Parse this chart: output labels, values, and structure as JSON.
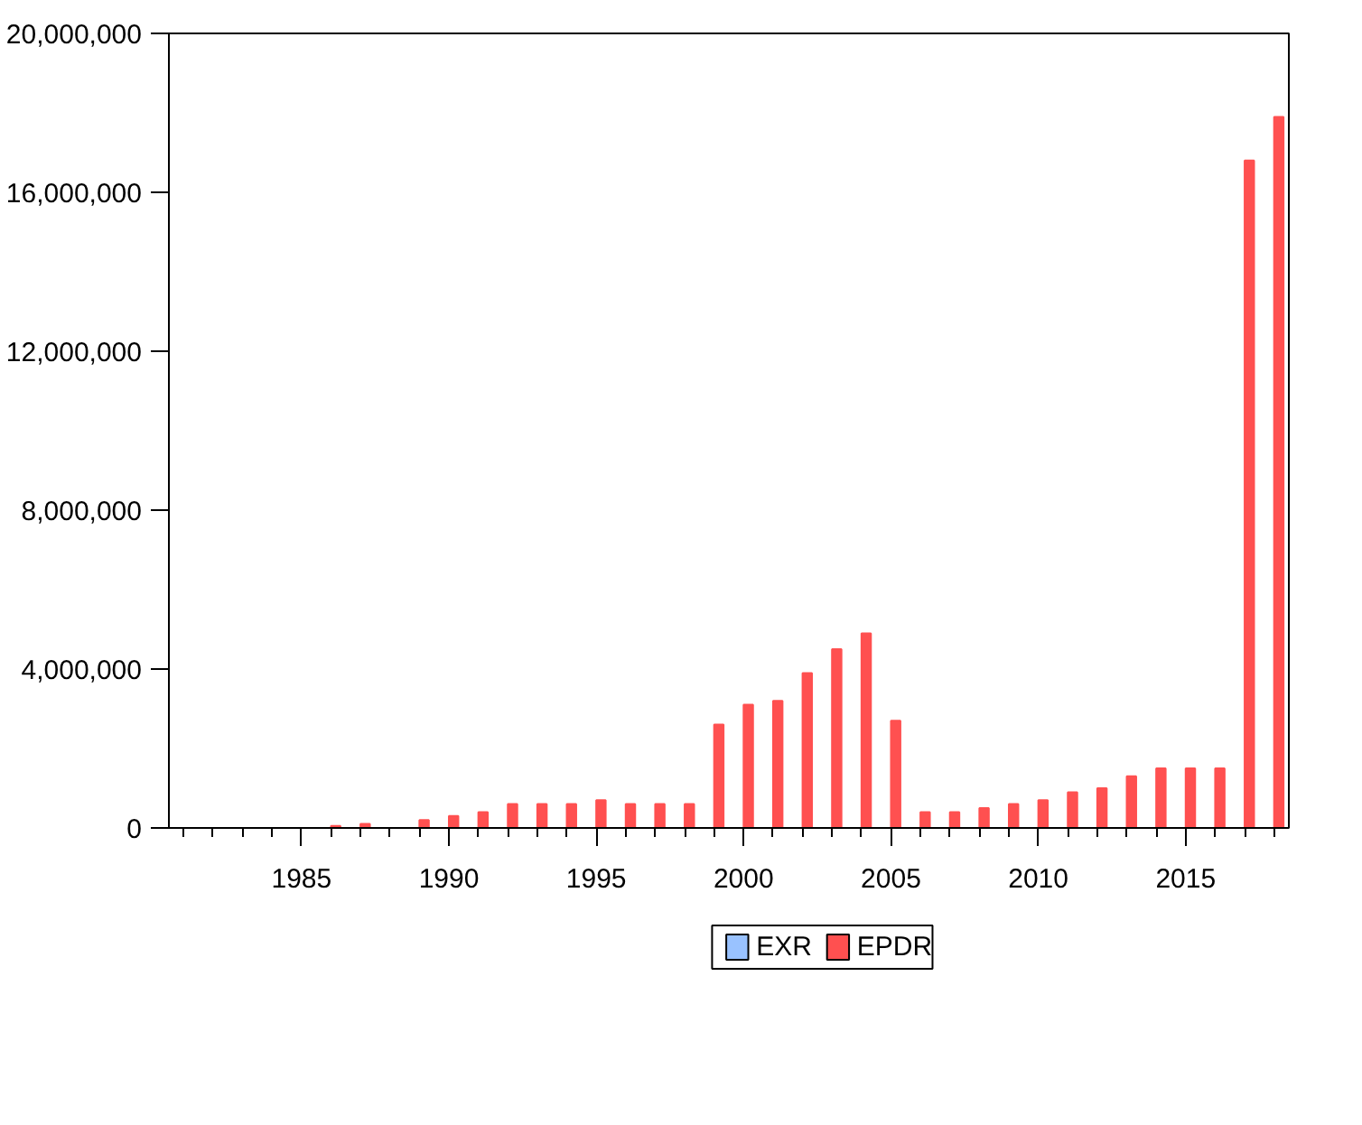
{
  "chart_data": {
    "type": "bar",
    "x": [
      1981,
      1982,
      1983,
      1984,
      1985,
      1986,
      1987,
      1988,
      1989,
      1990,
      1991,
      1992,
      1993,
      1994,
      1995,
      1996,
      1997,
      1998,
      1999,
      2000,
      2001,
      2002,
      2003,
      2004,
      2005,
      2006,
      2007,
      2008,
      2009,
      2010,
      2011,
      2012,
      2013,
      2014,
      2015,
      2016,
      2017,
      2018
    ],
    "series": [
      {
        "name": "EXR",
        "color": "#99c2ff",
        "values": [
          null,
          null,
          null,
          null,
          null,
          null,
          null,
          null,
          null,
          null,
          null,
          null,
          null,
          null,
          null,
          null,
          null,
          null,
          null,
          null,
          null,
          null,
          null,
          null,
          null,
          null,
          null,
          null,
          null,
          null,
          null,
          null,
          null,
          null,
          null,
          null,
          null,
          null
        ]
      },
      {
        "name": "EPDR",
        "color": "#ff5050",
        "values": [
          0,
          0,
          0,
          0,
          0,
          50000.0,
          100000.0,
          0,
          200000.0,
          300000.0,
          400000.0,
          600000.0,
          600000.0,
          600000.0,
          700000.0,
          600000.0,
          600000.0,
          600000.0,
          2600000.0,
          3100000.0,
          3200000.0,
          3900000.0,
          4500000.0,
          4900000.0,
          2700000.0,
          400000.0,
          400000.0,
          500000.0,
          600000.0,
          700000.0,
          900000.0,
          1000000.0,
          1300000.0,
          1500000.0,
          1500000.0,
          1500000.0,
          16800000.0,
          17900000.0
        ]
      }
    ],
    "xlim": [
      1980.5,
      2018.5
    ],
    "xticks": [
      {
        "value": 1981,
        "label": null
      },
      {
        "value": 1982,
        "label": null
      },
      {
        "value": 1983,
        "label": null
      },
      {
        "value": 1984,
        "label": null
      },
      {
        "value": 1985,
        "label": "1985"
      },
      {
        "value": 1986,
        "label": null
      },
      {
        "value": 1987,
        "label": null
      },
      {
        "value": 1988,
        "label": null
      },
      {
        "value": 1989,
        "label": null
      },
      {
        "value": 1990,
        "label": "1990"
      },
      {
        "value": 1991,
        "label": null
      },
      {
        "value": 1992,
        "label": null
      },
      {
        "value": 1993,
        "label": null
      },
      {
        "value": 1994,
        "label": null
      },
      {
        "value": 1995,
        "label": "1995"
      },
      {
        "value": 1996,
        "label": null
      },
      {
        "value": 1997,
        "label": null
      },
      {
        "value": 1998,
        "label": null
      },
      {
        "value": 1999,
        "label": null
      },
      {
        "value": 2000,
        "label": "2000"
      },
      {
        "value": 2001,
        "label": null
      },
      {
        "value": 2002,
        "label": null
      },
      {
        "value": 2003,
        "label": null
      },
      {
        "value": 2004,
        "label": null
      },
      {
        "value": 2005,
        "label": "2005"
      },
      {
        "value": 2006,
        "label": null
      },
      {
        "value": 2007,
        "label": null
      },
      {
        "value": 2008,
        "label": null
      },
      {
        "value": 2009,
        "label": null
      },
      {
        "value": 2010,
        "label": "2010"
      },
      {
        "value": 2011,
        "label": null
      },
      {
        "value": 2012,
        "label": null
      },
      {
        "value": 2013,
        "label": null
      },
      {
        "value": 2014,
        "label": null
      },
      {
        "value": 2015,
        "label": "2015"
      },
      {
        "value": 2016,
        "label": null
      },
      {
        "value": 2017,
        "label": null
      },
      {
        "value": 2018,
        "label": null
      }
    ],
    "ylim": [
      0,
      20000000
    ],
    "yticks": [
      {
        "value": 0,
        "label": "0"
      },
      {
        "value": 4000000,
        "label": "4,000,000"
      },
      {
        "value": 8000000,
        "label": "8,000,000"
      },
      {
        "value": 12000000,
        "label": "12,000,000"
      },
      {
        "value": 16000000,
        "label": "16,000,000"
      },
      {
        "value": 20000000,
        "label": "20,000,000"
      }
    ],
    "grid": false,
    "legend": "bottom"
  }
}
